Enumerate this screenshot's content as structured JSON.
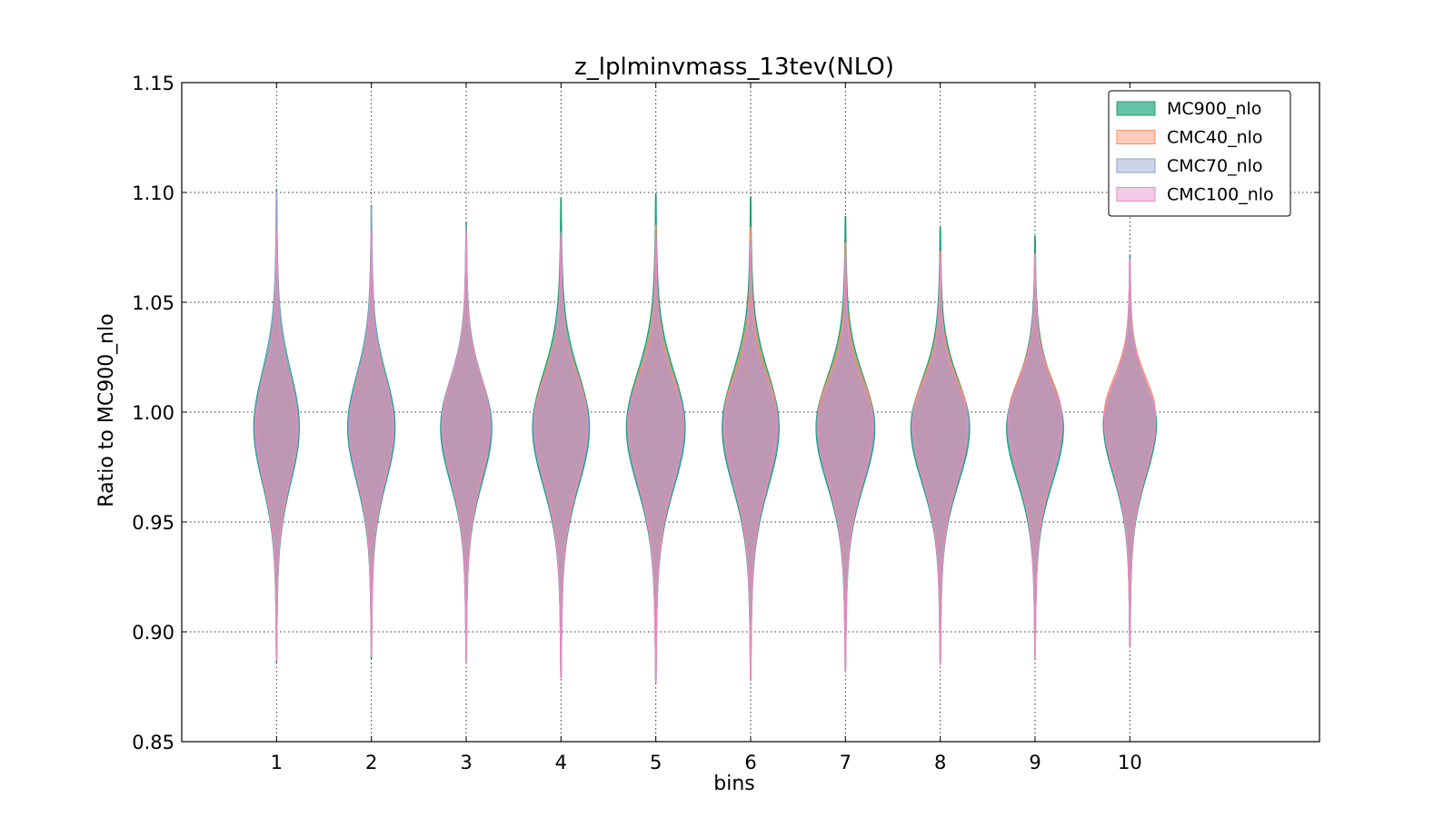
{
  "chart_data": {
    "type": "violin",
    "title": "z_lplminvmass_13tev(NLO)",
    "xlabel": "bins",
    "ylabel": "Ratio to MC900_nlo",
    "x_ticks": [
      "1",
      "2",
      "3",
      "4",
      "5",
      "6",
      "7",
      "8",
      "9",
      "10"
    ],
    "x_range": [
      0,
      12
    ],
    "y_range": [
      0.85,
      1.15
    ],
    "y_ticks": [
      "0.85",
      "0.90",
      "0.95",
      "1.00",
      "1.05",
      "1.10",
      "1.15"
    ],
    "y_tick_values": [
      0.85,
      0.9,
      0.95,
      1.0,
      1.05,
      1.1,
      1.15
    ],
    "grid": true,
    "legend_position": "top-right",
    "series": [
      {
        "name": "MC900_nlo",
        "fill": "#66c2a5",
        "edge": "#1a9e77",
        "ymin": [
          0.886,
          0.888,
          0.887,
          0.88,
          0.878,
          0.878,
          0.883,
          0.886,
          0.889,
          0.893
        ],
        "ymax": [
          1.101,
          1.094,
          1.086,
          1.097,
          1.099,
          1.098,
          1.089,
          1.084,
          1.08,
          1.071
        ],
        "center": [
          0.993,
          0.993,
          0.993,
          0.993,
          0.993,
          0.993,
          0.993,
          0.993,
          0.993,
          0.995
        ],
        "peak_halfwidth": [
          0.24,
          0.25,
          0.27,
          0.3,
          0.31,
          0.3,
          0.31,
          0.31,
          0.3,
          0.28
        ]
      },
      {
        "name": "CMC40_nlo",
        "fill": "#fc8d62",
        "edge": "#fc8d62",
        "ymin": [
          0.89,
          0.89,
          0.888,
          0.882,
          0.88,
          0.88,
          0.885,
          0.888,
          0.89,
          0.895
        ],
        "ymax": [
          1.084,
          1.082,
          1.083,
          1.082,
          1.085,
          1.084,
          1.077,
          1.073,
          1.072,
          1.07
        ],
        "center": [
          0.995,
          0.995,
          0.996,
          0.997,
          0.997,
          0.997,
          0.997,
          0.997,
          0.998,
          0.999
        ],
        "peak_halfwidth": [
          0.22,
          0.23,
          0.25,
          0.28,
          0.28,
          0.28,
          0.29,
          0.29,
          0.28,
          0.27
        ]
      },
      {
        "name": "CMC70_nlo",
        "fill": "#8da0cb",
        "edge": "#8da0cb",
        "ymin": [
          0.888,
          0.89,
          0.887,
          0.881,
          0.879,
          0.879,
          0.884,
          0.887,
          0.89,
          0.894
        ],
        "ymax": [
          1.1,
          1.093,
          1.085,
          1.082,
          1.08,
          1.077,
          1.07,
          1.07,
          1.071,
          1.07
        ],
        "center": [
          0.993,
          0.993,
          0.994,
          0.994,
          0.994,
          0.994,
          0.994,
          0.994,
          0.995,
          0.996
        ],
        "peak_halfwidth": [
          0.23,
          0.24,
          0.26,
          0.29,
          0.3,
          0.29,
          0.3,
          0.3,
          0.29,
          0.27
        ]
      },
      {
        "name": "CMC100_nlo",
        "fill": "#e78ac3",
        "edge": "#e78ac3",
        "ymin": [
          0.887,
          0.889,
          0.886,
          0.879,
          0.877,
          0.878,
          0.882,
          0.885,
          0.888,
          0.893
        ],
        "ymax": [
          1.083,
          1.082,
          1.082,
          1.08,
          1.079,
          1.076,
          1.07,
          1.07,
          1.07,
          1.069
        ],
        "center": [
          0.994,
          0.994,
          0.995,
          0.995,
          0.995,
          0.995,
          0.995,
          0.995,
          0.996,
          0.997
        ],
        "peak_halfwidth": [
          0.22,
          0.23,
          0.25,
          0.28,
          0.29,
          0.28,
          0.29,
          0.29,
          0.28,
          0.27
        ]
      }
    ]
  }
}
